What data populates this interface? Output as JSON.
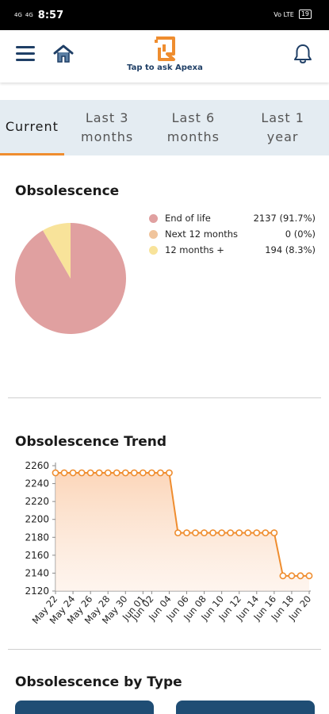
{
  "status_bar": {
    "time": "8:57",
    "signal_1": "4G",
    "signal_2": "4G",
    "network_right": "Vo LTE",
    "battery": "19"
  },
  "header": {
    "logo_caption": "Tap to ask Apexa",
    "icons": {
      "menu": "menu-icon",
      "home": "home-icon",
      "logo": "apexa-logo-icon",
      "notifications": "bell-icon"
    }
  },
  "tabs": [
    {
      "label": "Current",
      "active": true
    },
    {
      "label": "Last 3 months",
      "active": false
    },
    {
      "label": "Last 6 months",
      "active": false
    },
    {
      "label": "Last 1 year",
      "active": false
    }
  ],
  "obsolescence": {
    "title": "Obsolescence",
    "legend": [
      {
        "label": "End of life",
        "value": "2137 (91.7%)",
        "color": "#e0a0a0"
      },
      {
        "label": "Next 12 months",
        "value": "0 (0%)",
        "color": "#f0c49c"
      },
      {
        "label": "12 months +",
        "value": "194 (8.3%)",
        "color": "#f8e39a"
      }
    ]
  },
  "trend": {
    "title": "Obsolescence Trend"
  },
  "by_type": {
    "title": "Obsolescence by Type",
    "card_color": "#1f4d74"
  },
  "colors": {
    "accent": "#ef8d2f",
    "brand_navy": "#1f3f66",
    "tabs_bg": "#e4ecf2"
  },
  "chart_data": [
    {
      "type": "pie",
      "title": "Obsolescence",
      "categories": [
        "End of life",
        "Next 12 months",
        "12 months +"
      ],
      "values": [
        2137,
        0,
        194
      ],
      "colors": [
        "#e0a0a0",
        "#f0c49c",
        "#f8e39a"
      ]
    },
    {
      "type": "area",
      "title": "Obsolescence Trend",
      "x": [
        "May 22",
        "May 23",
        "May 24",
        "May 25",
        "May 26",
        "May 27",
        "May 28",
        "May 29",
        "May 30",
        "May 31",
        "Jun 01",
        "Jun 02",
        "Jun 03",
        "Jun 04",
        "Jun 05",
        "Jun 06",
        "Jun 07",
        "Jun 08",
        "Jun 09",
        "Jun 10",
        "Jun 11",
        "Jun 12",
        "Jun 13",
        "Jun 14",
        "Jun 15",
        "Jun 16",
        "Jun 17",
        "Jun 18",
        "Jun 19",
        "Jun 20"
      ],
      "x_tick_labels": [
        "May 22",
        "May 24",
        "May 26",
        "May 28",
        "May 30",
        "Jun 01",
        "Jun 02",
        "Jun 04",
        "Jun 06",
        "Jun 08",
        "Jun 10",
        "Jun 12",
        "Jun 14",
        "Jun 16",
        "Jun 18",
        "Jun 20"
      ],
      "series": [
        {
          "values": [
            2252,
            2252,
            2252,
            2252,
            2252,
            2252,
            2252,
            2252,
            2252,
            2252,
            2252,
            2252,
            2252,
            2252,
            2185,
            2185,
            2185,
            2185,
            2185,
            2185,
            2185,
            2185,
            2185,
            2185,
            2185,
            2185,
            2137,
            2137,
            2137,
            2137
          ],
          "color": "#ef8d2f"
        }
      ],
      "y_ticks": [
        2120,
        2140,
        2160,
        2180,
        2200,
        2220,
        2240,
        2260
      ],
      "ylim": [
        2120,
        2260
      ],
      "grid": false
    }
  ]
}
